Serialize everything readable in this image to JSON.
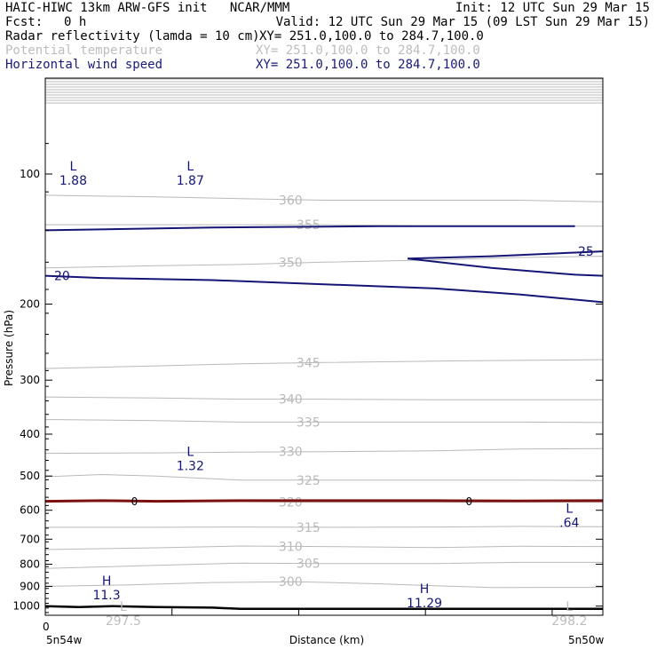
{
  "header": {
    "title_left": "HAIC-HIWC 13km ARW-GFS init   NCAR/MMM",
    "title_right": "Init: 12 UTC Sun 29 Mar 15",
    "fcst_label": "Fcst:",
    "fcst_value": "0 h",
    "valid": "Valid: 12 UTC Sun 29 Mar 15 (09 LST Sun 29 Mar 15)",
    "fields": [
      {
        "name": "Radar reflectivity (lamda = 10 cm)",
        "xy": "XY= 251.0,100.0 to 284.7,100.0",
        "color": "#000000"
      },
      {
        "name": "Potential temperature",
        "xy": "XY= 251.0,100.0 to 284.7,100.0",
        "color": "#bdbdbd"
      },
      {
        "name": "Horizontal wind speed",
        "xy": "XY= 251.0,100.0 to 284.7,100.0",
        "color": "#1a1a7a"
      }
    ]
  },
  "colors": {
    "theta": "#b9b9b9",
    "wind": "#151575",
    "zero_line": "#7a1010",
    "terrain": "#000000"
  },
  "chart_data": {
    "type": "contour",
    "xlabel": "Distance (km)",
    "ylabel": "Pressure (hPa)",
    "x_ticks": [
      {
        "pos": 0,
        "label": "0"
      }
    ],
    "x_end_labels": {
      "left": "5n54w",
      "right": "5n50w"
    },
    "y_scale": "log",
    "y_ticks": [
      100,
      200,
      300,
      400,
      500,
      600,
      700,
      800,
      900,
      1000
    ],
    "ylim": [
      1050,
      60
    ],
    "theta_contours": [
      {
        "value": 300,
        "label": "300",
        "points": [
          [
            0,
            900
          ],
          [
            0.15,
            893
          ],
          [
            0.3,
            882
          ],
          [
            0.45,
            878
          ],
          [
            0.6,
            888
          ],
          [
            0.8,
            906
          ],
          [
            1,
            905
          ]
        ]
      },
      {
        "value": 305,
        "label": "305",
        "points": [
          [
            0,
            818
          ],
          [
            0.2,
            805
          ],
          [
            0.35,
            795
          ],
          [
            0.5,
            797
          ],
          [
            0.7,
            797
          ],
          [
            0.85,
            792
          ],
          [
            1,
            792
          ]
        ]
      },
      {
        "value": 310,
        "label": "310",
        "points": [
          [
            0,
            740
          ],
          [
            0.2,
            733
          ],
          [
            0.35,
            726
          ],
          [
            0.5,
            728
          ],
          [
            0.7,
            732
          ],
          [
            0.85,
            727
          ],
          [
            1,
            728
          ]
        ]
      },
      {
        "value": 315,
        "label": "315",
        "points": [
          [
            0,
            657
          ],
          [
            0.2,
            657
          ],
          [
            0.35,
            656
          ],
          [
            0.5,
            657
          ],
          [
            0.7,
            656
          ],
          [
            0.85,
            654
          ],
          [
            1,
            655
          ]
        ]
      },
      {
        "value": 320,
        "label": "320",
        "points": [
          [
            0,
            570
          ],
          [
            0.2,
            571
          ],
          [
            0.35,
            573
          ],
          [
            0.5,
            575
          ],
          [
            0.7,
            575
          ],
          [
            0.85,
            574
          ],
          [
            1,
            575
          ]
        ]
      },
      {
        "value": 325,
        "label": "325",
        "points": [
          [
            0,
            502
          ],
          [
            0.1,
            496
          ],
          [
            0.2,
            500
          ],
          [
            0.35,
            511
          ],
          [
            0.5,
            511
          ],
          [
            0.7,
            511
          ],
          [
            0.85,
            511
          ],
          [
            1,
            512
          ]
        ]
      },
      {
        "value": 330,
        "label": "330",
        "points": [
          [
            0,
            443
          ],
          [
            0.2,
            442
          ],
          [
            0.35,
            440
          ],
          [
            0.5,
            439
          ],
          [
            0.7,
            437
          ],
          [
            0.85,
            433
          ],
          [
            1,
            432
          ]
        ]
      },
      {
        "value": 335,
        "label": "335",
        "points": [
          [
            0,
            370
          ],
          [
            0.2,
            372
          ],
          [
            0.35,
            375
          ],
          [
            0.5,
            375
          ],
          [
            0.7,
            375
          ],
          [
            0.85,
            375
          ],
          [
            1,
            376
          ]
        ]
      },
      {
        "value": 340,
        "label": "340",
        "points": [
          [
            0,
            328
          ],
          [
            0.2,
            330
          ],
          [
            0.35,
            332
          ],
          [
            0.5,
            332
          ],
          [
            0.7,
            333
          ],
          [
            0.85,
            333
          ],
          [
            1,
            333
          ]
        ]
      },
      {
        "value": 345,
        "label": "345",
        "points": [
          [
            0,
            282
          ],
          [
            0.2,
            278
          ],
          [
            0.35,
            275
          ],
          [
            0.5,
            273
          ],
          [
            0.7,
            271
          ],
          [
            0.85,
            270
          ],
          [
            1,
            269
          ]
        ]
      },
      {
        "value": 350,
        "label": "350",
        "points": [
          [
            0,
            165
          ],
          [
            0.2,
            163
          ],
          [
            0.35,
            162
          ],
          [
            0.5,
            160
          ],
          [
            0.7,
            158
          ],
          [
            0.85,
            156
          ],
          [
            1,
            155
          ]
        ]
      },
      {
        "value": 355,
        "label": "355",
        "points": [
          [
            0,
            131
          ],
          [
            0.2,
            131
          ],
          [
            0.35,
            131
          ],
          [
            0.5,
            131
          ],
          [
            0.7,
            132
          ],
          [
            0.85,
            132
          ],
          [
            1,
            132
          ]
        ]
      },
      {
        "value": 360,
        "label": "360",
        "points": [
          [
            0,
            112
          ],
          [
            0.2,
            113
          ],
          [
            0.35,
            114
          ],
          [
            0.5,
            115
          ],
          [
            0.7,
            115
          ],
          [
            0.85,
            115
          ],
          [
            1,
            116
          ]
        ]
      }
    ],
    "wind_contours": [
      {
        "value": 20,
        "label": "20",
        "points": [
          [
            0,
            172
          ],
          [
            0.1,
            174
          ],
          [
            0.3,
            176
          ],
          [
            0.5,
            180
          ],
          [
            0.7,
            184
          ],
          [
            0.85,
            190
          ],
          [
            1,
            198
          ]
        ]
      },
      {
        "value": 25,
        "label": "25",
        "points": [
          [
            0.65,
            157
          ],
          [
            0.8,
            155
          ],
          [
            0.95,
            152
          ],
          [
            1,
            151
          ]
        ]
      },
      {
        "value": 25,
        "label": "",
        "points": [
          [
            0.65,
            157
          ],
          [
            0.8,
            165
          ],
          [
            0.95,
            171
          ],
          [
            1,
            172
          ]
        ]
      },
      {
        "value": 20,
        "label": "",
        "points": [
          [
            0,
            135
          ],
          [
            0.3,
            133
          ],
          [
            0.6,
            132
          ],
          [
            0.95,
            132
          ]
        ]
      }
    ],
    "zero_contour": {
      "label": "0",
      "points": [
        [
          0,
          572
        ],
        [
          0.1,
          570
        ],
        [
          0.2,
          572
        ],
        [
          0.35,
          570
        ],
        [
          0.5,
          570
        ],
        [
          0.7,
          570
        ],
        [
          0.85,
          571
        ],
        [
          1,
          570
        ]
      ]
    },
    "terrain": {
      "points": [
        [
          0,
          1000
        ],
        [
          0.06,
          1005
        ],
        [
          0.12,
          1000
        ],
        [
          0.2,
          1005
        ],
        [
          0.3,
          1008
        ],
        [
          0.35,
          1015
        ],
        [
          0.5,
          1015
        ],
        [
          0.7,
          1015
        ],
        [
          0.85,
          1015
        ],
        [
          1,
          1015
        ]
      ]
    },
    "extrema": [
      {
        "type": "L",
        "value": "1.88",
        "x": 0.05,
        "p": 100,
        "field": "wind"
      },
      {
        "type": "L",
        "value": "1.87",
        "x": 0.26,
        "p": 100,
        "field": "wind"
      },
      {
        "type": "L",
        "value": "1.32",
        "x": 0.26,
        "p": 458,
        "field": "wind"
      },
      {
        "type": "L",
        "value": ".64",
        "x": 0.94,
        "p": 620,
        "field": "wind"
      },
      {
        "type": "H",
        "value": "11.3",
        "x": 0.11,
        "p": 912,
        "field": "wind"
      },
      {
        "type": "H",
        "value": "11.29",
        "x": 0.68,
        "p": 950,
        "field": "wind"
      },
      {
        "type": "L",
        "value": "297.5",
        "x": 0.14,
        "p": 1045,
        "field": "theta"
      },
      {
        "type": "L",
        "value": "298.2",
        "x": 0.94,
        "p": 1045,
        "field": "theta"
      }
    ]
  }
}
